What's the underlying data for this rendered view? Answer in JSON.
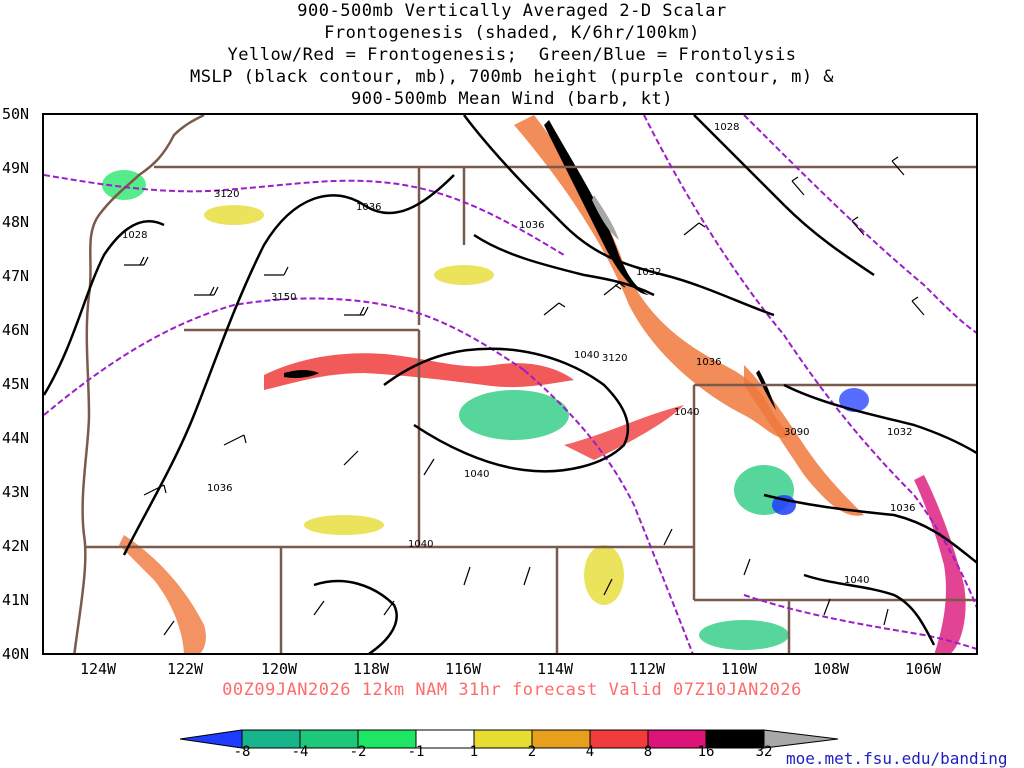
{
  "title_lines": [
    "900-500mb Vertically Averaged 2-D Scalar",
    "Frontogenesis (shaded, K/6hr/100km)",
    "Yellow/Red = Frontogenesis;  Green/Blue = Frontolysis",
    "MSLP (black contour, mb), 700mb height (purple contour, m) &",
    "900-500mb Mean Wind (barb, kt)"
  ],
  "lat_labels": [
    "50N",
    "49N",
    "48N",
    "47N",
    "46N",
    "45N",
    "44N",
    "43N",
    "42N",
    "41N",
    "40N"
  ],
  "lon_labels": [
    "124W",
    "122W",
    "120W",
    "118W",
    "116W",
    "114W",
    "112W",
    "110W",
    "108W",
    "106W"
  ],
  "valid_text": "00Z09JAN2026 12km NAM 31hr forecast Valid 07Z10JAN2026",
  "colorbar": {
    "labels": [
      "-8",
      "-4",
      "-2",
      "-1",
      "1",
      "2",
      "4",
      "8",
      "16",
      "32"
    ],
    "colors": [
      "#1e3cff",
      "#18b48c",
      "#1ec87a",
      "#1ee664",
      "#2ad82a",
      "#ffffff",
      "#e6dc32",
      "#e6a01e",
      "#f0781e",
      "#f03c3c",
      "#dc1478",
      "#000000",
      "#a8a8a8"
    ]
  },
  "credit": "moe.met.fsu.edu/banding",
  "pressure_labels": [
    "1028",
    "1036",
    "1036",
    "1032",
    "1040",
    "1036",
    "1040",
    "1032",
    "1036",
    "1040",
    "1028",
    "1036",
    "1040",
    "1040"
  ],
  "height_labels": [
    "3120",
    "3150",
    "3120",
    "3090"
  ],
  "colors": {
    "state_border": "#7a5a4a",
    "height_contour": "#9b1ec8",
    "pressure_contour": "#000000",
    "valid_text": "#ff6b6b"
  }
}
